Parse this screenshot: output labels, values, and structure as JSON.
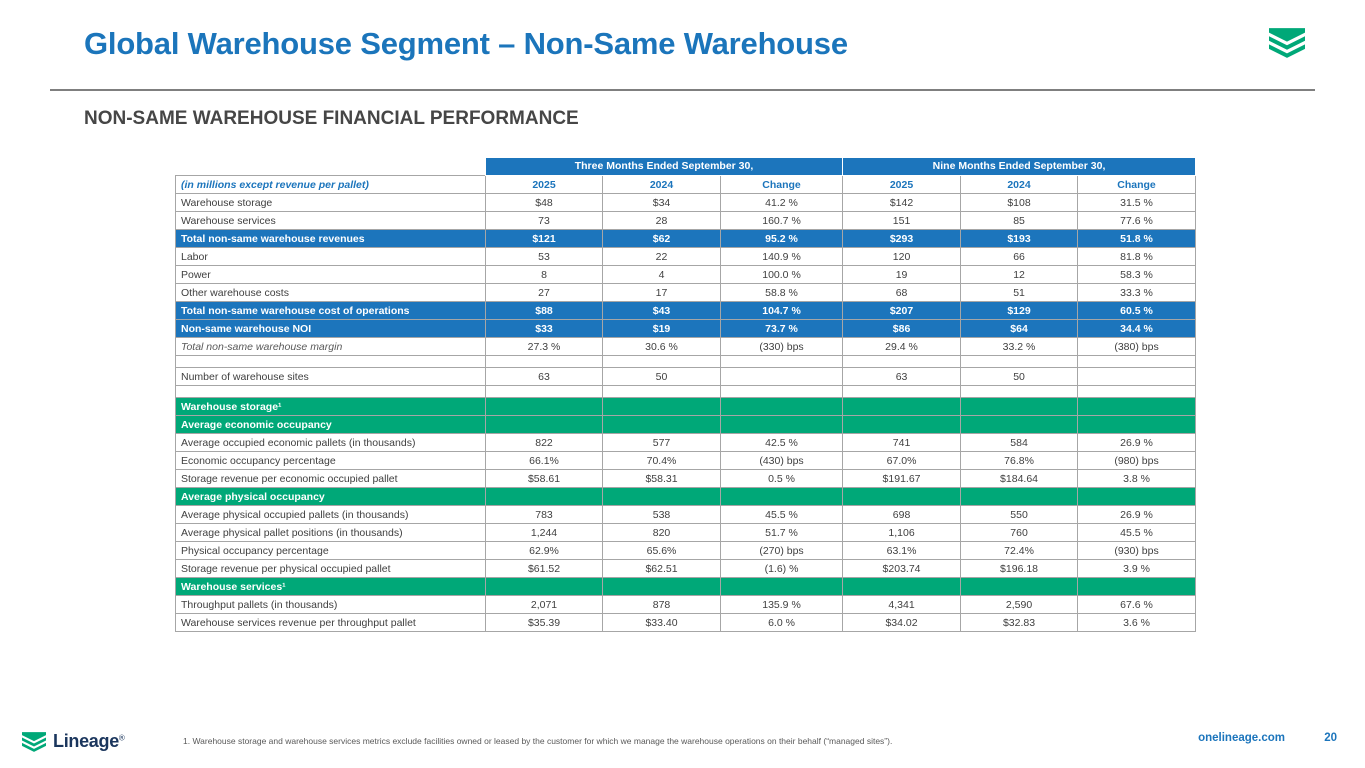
{
  "slide": {
    "title": "Global Warehouse Segment – Non-Same Warehouse",
    "subtitle": "NON-SAME WAREHOUSE FINANCIAL PERFORMANCE",
    "footnote": "1.    Warehouse storage and warehouse services metrics exclude facilities owned or leased by the customer for which we manage the warehouse operations on their behalf (“managed sites”).",
    "brand_wordmark": "Lineage",
    "brand_reg": "®",
    "website": "onelineage.com",
    "page_number": "20"
  },
  "colors": {
    "accent_blue": "#1C75BC",
    "accent_green": "#00A878",
    "title_blue": "#1B75BB",
    "brand_navy": "#1B365D"
  },
  "table": {
    "group_headers": [
      "Three Months Ended\nSeptember 30,",
      "Nine Months Ended\nSeptember 30,"
    ],
    "label_header": "(in millions except revenue per pallet)",
    "col_headers": [
      "2025",
      "2024",
      "Change",
      "2025",
      "2024",
      "Change"
    ],
    "rows": [
      {
        "label": "Warehouse storage",
        "style": "normal",
        "values": [
          "$48",
          "$34",
          "41.2 %",
          "$142",
          "$108",
          "31.5 %"
        ]
      },
      {
        "label": "Warehouse services",
        "style": "normal",
        "values": [
          "73",
          "28",
          "160.7 %",
          "151",
          "85",
          "77.6 %"
        ]
      },
      {
        "label": "Total non-same warehouse revenues",
        "style": "blue",
        "values": [
          "$121",
          "$62",
          "95.2 %",
          "$293",
          "$193",
          "51.8 %"
        ]
      },
      {
        "label": "Labor",
        "style": "normal",
        "values": [
          "53",
          "22",
          "140.9 %",
          "120",
          "66",
          "81.8 %"
        ]
      },
      {
        "label": "Power",
        "style": "normal",
        "values": [
          "8",
          "4",
          "100.0 %",
          "19",
          "12",
          "58.3 %"
        ]
      },
      {
        "label": "Other warehouse costs",
        "style": "normal",
        "values": [
          "27",
          "17",
          "58.8 %",
          "68",
          "51",
          "33.3 %"
        ]
      },
      {
        "label": "Total non-same warehouse cost of operations",
        "style": "blue",
        "values": [
          "$88",
          "$43",
          "104.7 %",
          "$207",
          "$129",
          "60.5 %"
        ]
      },
      {
        "label": "Non-same warehouse NOI",
        "style": "blue",
        "values": [
          "$33",
          "$19",
          "73.7 %",
          "$86",
          "$64",
          "34.4 %"
        ]
      },
      {
        "label": "Total non-same warehouse margin",
        "style": "italic",
        "values": [
          "27.3 %",
          "30.6 %",
          "(330) bps",
          "29.4 %",
          "33.2 %",
          "(380) bps"
        ]
      },
      {
        "label": "",
        "style": "spacer",
        "values": [
          "",
          "",
          "",
          "",
          "",
          ""
        ]
      },
      {
        "label": "Number of warehouse sites",
        "style": "normal",
        "values": [
          "63",
          "50",
          "",
          "63",
          "50",
          ""
        ]
      },
      {
        "label": "",
        "style": "spacer",
        "values": [
          "",
          "",
          "",
          "",
          "",
          ""
        ]
      },
      {
        "label": "Warehouse storage¹",
        "style": "green",
        "values": [
          "",
          "",
          "",
          "",
          "",
          ""
        ]
      },
      {
        "label": "Average economic occupancy",
        "style": "green",
        "values": [
          "",
          "",
          "",
          "",
          "",
          ""
        ]
      },
      {
        "label": "Average occupied economic pallets (in thousands)",
        "style": "normal",
        "values": [
          "822",
          "577",
          "42.5 %",
          "741",
          "584",
          "26.9 %"
        ]
      },
      {
        "label": "Economic occupancy percentage",
        "style": "normal",
        "values": [
          "66.1%",
          "70.4%",
          "(430) bps",
          "67.0%",
          "76.8%",
          "(980) bps"
        ]
      },
      {
        "label": "Storage revenue per economic occupied pallet",
        "style": "normal",
        "values": [
          "$58.61",
          "$58.31",
          "0.5 %",
          "$191.67",
          "$184.64",
          "3.8 %"
        ]
      },
      {
        "label": "Average physical occupancy",
        "style": "green",
        "values": [
          "",
          "",
          "",
          "",
          "",
          ""
        ]
      },
      {
        "label": "Average physical occupied pallets (in thousands)",
        "style": "normal",
        "values": [
          "783",
          "538",
          "45.5 %",
          "698",
          "550",
          "26.9 %"
        ]
      },
      {
        "label": "Average physical pallet positions (in thousands)",
        "style": "normal",
        "values": [
          "1,244",
          "820",
          "51.7 %",
          "1,106",
          "760",
          "45.5 %"
        ]
      },
      {
        "label": "Physical occupancy percentage",
        "style": "normal",
        "values": [
          "62.9%",
          "65.6%",
          "(270) bps",
          "63.1%",
          "72.4%",
          "(930) bps"
        ]
      },
      {
        "label": "Storage revenue per physical occupied pallet",
        "style": "normal",
        "values": [
          "$61.52",
          "$62.51",
          "(1.6) %",
          "$203.74",
          "$196.18",
          "3.9 %"
        ]
      },
      {
        "label": "Warehouse services¹",
        "style": "green",
        "values": [
          "",
          "",
          "",
          "",
          "",
          ""
        ]
      },
      {
        "label": "Throughput pallets (in thousands)",
        "style": "normal",
        "values": [
          "2,071",
          "878",
          "135.9 %",
          "4,341",
          "2,590",
          "67.6 %"
        ]
      },
      {
        "label": "Warehouse services revenue per throughput pallet",
        "style": "normal",
        "values": [
          "$35.39",
          "$33.40",
          "6.0 %",
          "$34.02",
          "$32.83",
          "3.6 %"
        ]
      }
    ]
  }
}
